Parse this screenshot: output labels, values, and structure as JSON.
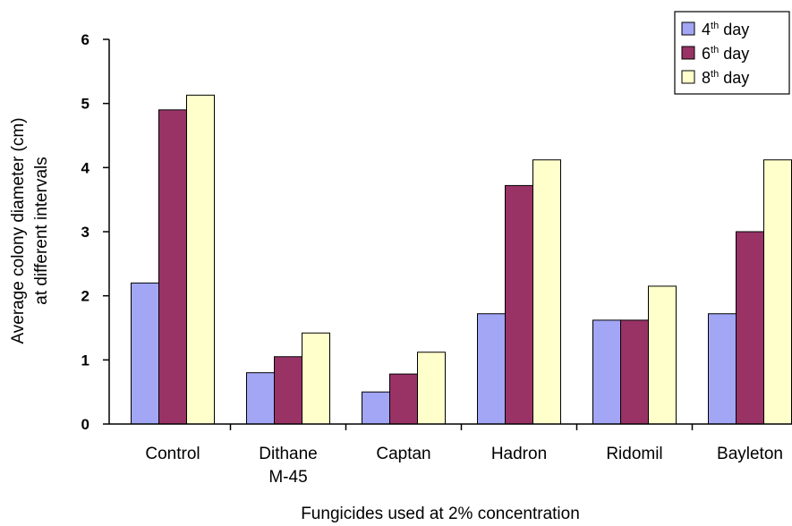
{
  "chart_data": {
    "type": "bar",
    "title": "",
    "xlabel": "Fungicides used at 2% concentration",
    "ylabel_lines": [
      "Average colony diameter (cm)",
      "at different intervals"
    ],
    "categories": [
      [
        "Control"
      ],
      [
        "Dithane",
        "M-45"
      ],
      [
        "Captan"
      ],
      [
        "Hadron"
      ],
      [
        "Ridomil"
      ],
      [
        "Bayleton"
      ]
    ],
    "series": [
      {
        "name": "4th day",
        "name_base": "4",
        "name_sup": "th",
        "name_rest": " day",
        "color": "#a2a6f5",
        "values": [
          2.2,
          0.8,
          0.5,
          1.72,
          1.62,
          1.72
        ]
      },
      {
        "name": "6th day",
        "name_base": "6",
        "name_sup": "th",
        "name_rest": " day",
        "color": "#993366",
        "values": [
          4.9,
          1.05,
          0.78,
          3.72,
          1.62,
          3.0
        ]
      },
      {
        "name": "8th day",
        "name_base": "8",
        "name_sup": "th",
        "name_rest": " day",
        "color": "#ffffcc",
        "values": [
          5.13,
          1.42,
          1.12,
          4.12,
          2.15,
          4.12
        ]
      }
    ],
    "yticks": [
      0,
      1,
      2,
      3,
      4,
      5,
      6
    ],
    "ylim": [
      0,
      6
    ],
    "grid": false,
    "legend_position": "top-right"
  }
}
